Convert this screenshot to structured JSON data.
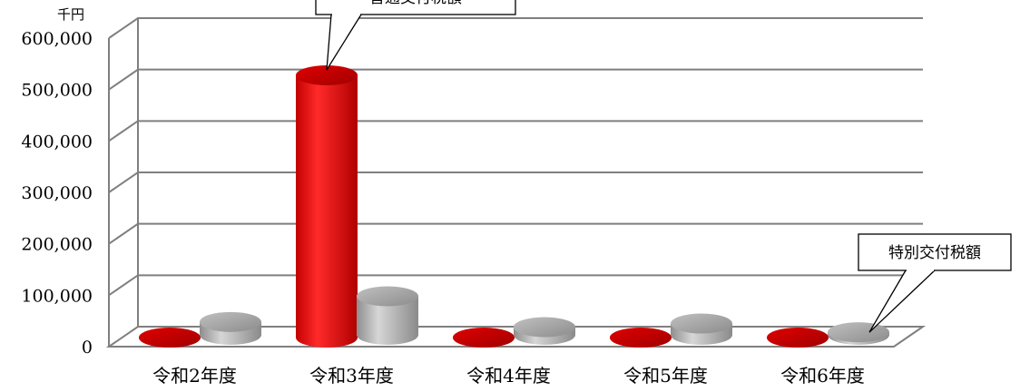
{
  "chart_data": {
    "type": "bar",
    "unit": "千円",
    "categories": [
      "令和2年度",
      "令和3年度",
      "令和4年度",
      "令和5年度",
      "令和6年度"
    ],
    "series": [
      {
        "name": "普通交付税額",
        "color": "#e00000",
        "values": [
          0,
          510000,
          0,
          0,
          0
        ]
      },
      {
        "name": "特別交付税額",
        "color": "#b0b0b0",
        "values": [
          25000,
          75000,
          15000,
          22000,
          5000
        ]
      }
    ],
    "ylim": [
      0,
      600000
    ],
    "yticks": [
      "0",
      "100,000",
      "200,000",
      "300,000",
      "400,000",
      "500,000",
      "600,000"
    ],
    "grid": true,
    "annotations": [
      {
        "text": "普通交付税額",
        "series": 0,
        "category": 1
      },
      {
        "text": "特別交付税額",
        "series": 1,
        "category": 4
      }
    ]
  }
}
